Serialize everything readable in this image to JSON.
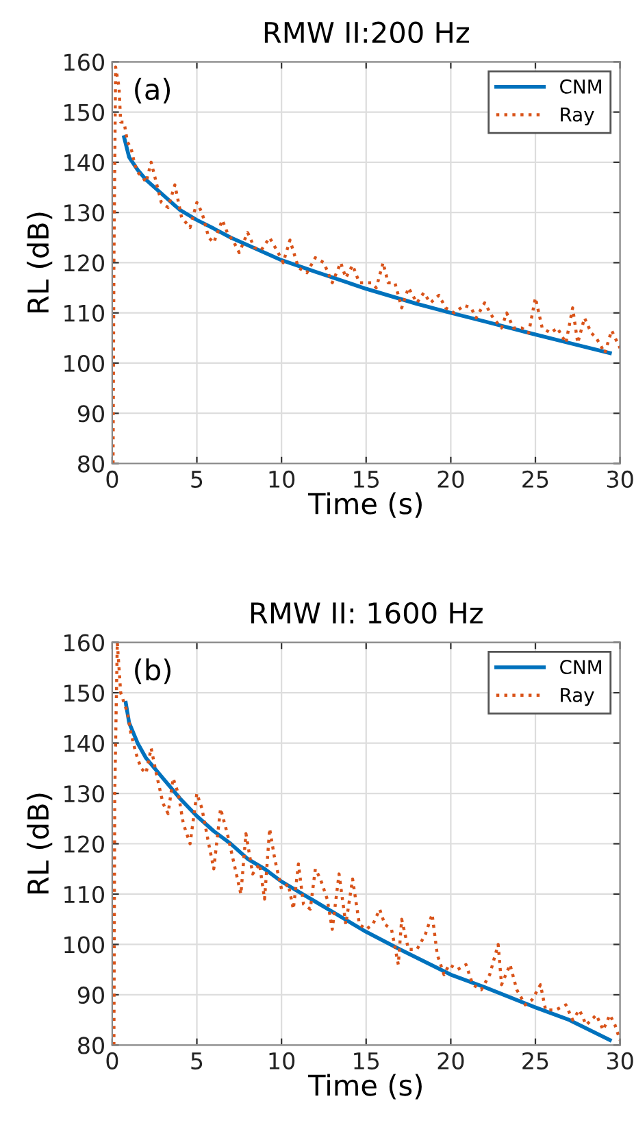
{
  "chart_data": [
    {
      "type": "line",
      "title": "RMW II:200 Hz",
      "xlabel": "Time (s)",
      "ylabel": "RL (dB)",
      "annotations": [
        "(a)"
      ],
      "xlim": [
        0,
        30
      ],
      "ylim": [
        80,
        160
      ],
      "xticks": [
        0,
        5,
        10,
        15,
        20,
        25,
        30
      ],
      "yticks": [
        80,
        90,
        100,
        110,
        120,
        130,
        140,
        150,
        160
      ],
      "grid": true,
      "legend": "top right",
      "series": [
        {
          "name": "CNM",
          "color": "#0072bd",
          "line_style": "solid",
          "x": [
            0.7,
            1,
            1.5,
            2,
            3,
            4,
            5,
            6,
            7,
            8,
            10,
            12,
            15,
            18,
            20,
            22,
            25,
            27,
            29.4
          ],
          "values": [
            145,
            141,
            138.5,
            136.5,
            133.5,
            130.5,
            128.5,
            126.8,
            125,
            123.5,
            120.5,
            118.2,
            114.8,
            111.8,
            110,
            108.3,
            105.7,
            104,
            102
          ]
        },
        {
          "name": "Ray",
          "color": "#d95319",
          "line_style": "dotted",
          "x": [
            0.05,
            0.1,
            0.2,
            0.4,
            0.5,
            0.7,
            0.9,
            1.1,
            1.3,
            1.5,
            1.8,
            2.0,
            2.3,
            2.6,
            2.9,
            3.3,
            3.7,
            4.1,
            4.6,
            5.0,
            5.3,
            5.7,
            6.0,
            6.5,
            6.8,
            7.2,
            7.5,
            8.0,
            8.4,
            8.8,
            9.3,
            9.8,
            10.1,
            10.5,
            11.0,
            11.5,
            12.0,
            12.5,
            13.0,
            13.5,
            13.8,
            14.2,
            14.6,
            15.3,
            15.6,
            16.0,
            16.3,
            16.7,
            17.1,
            17.5,
            18.0,
            18.4,
            18.8,
            19.3,
            19.7,
            20.2,
            20.8,
            21.2,
            21.5,
            22.0,
            22.5,
            23.0,
            23.3,
            23.7,
            24.2,
            24.6,
            25.0,
            25.4,
            25.9,
            26.3,
            26.8,
            27.2,
            27.5,
            27.9,
            28.3,
            28.6,
            29.1,
            29.5,
            30.0
          ],
          "values": [
            80,
            120,
            159,
            155,
            148,
            148,
            144,
            143,
            140,
            138,
            137,
            136,
            140,
            136,
            132,
            131,
            135.5,
            129,
            127,
            132,
            130,
            125,
            124,
            128.5,
            126,
            124,
            122,
            126,
            123,
            122.5,
            125,
            122,
            120,
            124.5,
            119,
            118,
            121,
            120,
            116,
            120,
            117,
            119.5,
            116,
            116,
            115,
            120,
            116,
            116,
            111,
            115,
            112,
            114,
            112,
            113.5,
            111,
            110,
            111.5,
            111,
            109,
            112,
            109,
            107,
            110,
            107,
            107,
            106,
            113,
            107,
            106,
            107,
            104,
            111,
            104,
            109,
            106,
            105,
            102,
            106.5,
            103
          ]
        }
      ]
    },
    {
      "type": "line",
      "title": "RMW II: 1600 Hz",
      "xlabel": "Time (s)",
      "ylabel": "RL (dB)",
      "annotations": [
        "(b)"
      ],
      "xlim": [
        0,
        30
      ],
      "ylim": [
        80,
        160
      ],
      "xticks": [
        0,
        5,
        10,
        15,
        20,
        25,
        30
      ],
      "yticks": [
        80,
        90,
        100,
        110,
        120,
        130,
        140,
        150,
        160
      ],
      "grid": true,
      "legend": "top right",
      "series": [
        {
          "name": "CNM",
          "color": "#0072bd",
          "line_style": "solid",
          "x": [
            0.8,
            1,
            1.5,
            2,
            3,
            4,
            5,
            6,
            7,
            8,
            9,
            10,
            11,
            12,
            13,
            15,
            17,
            20,
            22,
            25,
            27,
            29.4
          ],
          "values": [
            148,
            144,
            140,
            137,
            133,
            129,
            125.5,
            122.5,
            120,
            117,
            115,
            112.5,
            110.5,
            108.5,
            106.5,
            102.5,
            99,
            94,
            91.5,
            87.5,
            85,
            81
          ]
        },
        {
          "name": "Ray",
          "color": "#d95319",
          "line_style": "dotted",
          "x": [
            0.1,
            0.15,
            0.3,
            0.5,
            0.7,
            0.9,
            1.1,
            1.4,
            1.7,
            2.0,
            2.3,
            2.6,
            3.0,
            3.3,
            3.6,
            3.9,
            4.2,
            4.6,
            5.0,
            5.3,
            5.7,
            6.0,
            6.4,
            6.8,
            7.2,
            7.6,
            7.9,
            8.3,
            8.7,
            9.0,
            9.3,
            9.6,
            10.0,
            10.4,
            10.7,
            11.0,
            11.3,
            11.7,
            12.0,
            12.3,
            12.7,
            13.0,
            13.4,
            13.8,
            14.2,
            14.6,
            15.0,
            15.4,
            15.8,
            16.1,
            16.5,
            16.9,
            17.1,
            17.5,
            18.0,
            18.5,
            18.9,
            19.2,
            19.6,
            19.9,
            20.4,
            20.9,
            21.3,
            21.8,
            22.3,
            22.8,
            23.0,
            23.5,
            23.9,
            24.4,
            24.8,
            25.3,
            25.6,
            26.2,
            26.8,
            27.2,
            27.6,
            28.0,
            28.6,
            29.0,
            29.4,
            29.7,
            30.0
          ],
          "values": [
            80,
            130,
            160,
            150,
            148,
            146,
            142,
            138,
            135,
            134,
            139,
            134,
            128,
            126,
            133,
            130,
            124,
            120,
            130,
            127,
            120,
            115,
            127,
            122,
            116,
            110,
            122,
            114,
            116,
            109,
            123,
            117,
            111,
            112,
            107,
            116,
            108,
            107,
            115,
            113,
            109,
            103,
            114,
            104,
            113,
            104,
            103,
            104,
            107,
            104,
            103,
            96,
            105,
            99,
            99,
            102,
            106,
            98,
            94,
            96,
            95,
            96,
            92,
            91,
            94,
            100,
            92,
            96,
            91,
            88,
            89,
            92,
            87,
            87,
            88,
            85,
            87,
            84,
            86,
            83,
            86,
            84,
            81
          ]
        }
      ]
    }
  ]
}
